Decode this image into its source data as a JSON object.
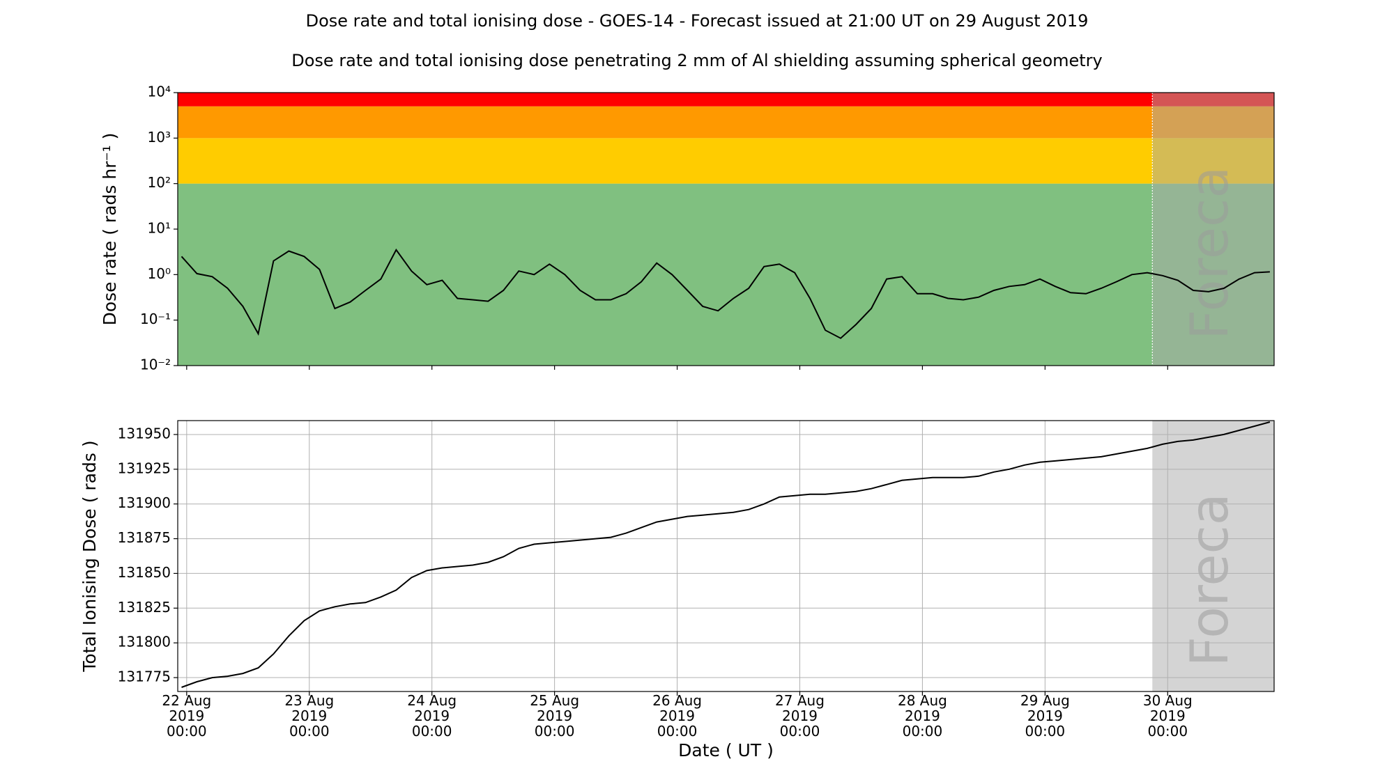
{
  "chart_data": [
    {
      "type": "line",
      "title": "Dose rate and total ionising dose - GOES-14 - Forecast issued at 21:00 UT on 29 August 2019",
      "subtitle": "Dose rate and total ionising dose penetrating 2 mm of Al shielding assuming spherical geometry",
      "ylabel": "Dose rate ( rads hr⁻¹ )",
      "annotation": "Forecast",
      "log_y": true,
      "grid": false,
      "color": "#000000",
      "bands": [
        {
          "from": 0.01,
          "to": 100,
          "color": "#80c080"
        },
        {
          "from": 100,
          "to": 1000,
          "color": "#ffcc00"
        },
        {
          "from": 1000,
          "to": 5000,
          "color": "#ff9900"
        },
        {
          "from": 5000,
          "to": 10000,
          "color": "#ff0000"
        }
      ],
      "forecast_start": "2019-08-29T21:00",
      "forecast_color": "#a9a9a9",
      "xlim": [
        "2019-08-21T22:15",
        "2019-08-30T20:50"
      ],
      "xticks": [
        "2019-08-22T00:00",
        "2019-08-23T00:00",
        "2019-08-24T00:00",
        "2019-08-25T00:00",
        "2019-08-26T00:00",
        "2019-08-27T00:00",
        "2019-08-28T00:00",
        "2019-08-29T00:00",
        "2019-08-30T00:00"
      ],
      "ylim": [
        0.01,
        10000
      ],
      "yticks": [
        {
          "value": 0.01,
          "label": "10⁻²"
        },
        {
          "value": 0.1,
          "label": "10⁻¹"
        },
        {
          "value": 1,
          "label": "10⁰"
        },
        {
          "value": 10,
          "label": "10¹"
        },
        {
          "value": 100,
          "label": "10²"
        },
        {
          "value": 1000,
          "label": "10³"
        },
        {
          "value": 10000,
          "label": "10⁴"
        }
      ],
      "x": [
        "2019-08-21T23:00",
        "2019-08-22T02:00",
        "2019-08-22T05:00",
        "2019-08-22T08:00",
        "2019-08-22T11:00",
        "2019-08-22T14:00",
        "2019-08-22T17:00",
        "2019-08-22T20:00",
        "2019-08-22T23:00",
        "2019-08-23T02:00",
        "2019-08-23T05:00",
        "2019-08-23T08:00",
        "2019-08-23T11:00",
        "2019-08-23T14:00",
        "2019-08-23T17:00",
        "2019-08-23T20:00",
        "2019-08-23T23:00",
        "2019-08-24T02:00",
        "2019-08-24T05:00",
        "2019-08-24T08:00",
        "2019-08-24T11:00",
        "2019-08-24T14:00",
        "2019-08-24T17:00",
        "2019-08-24T20:00",
        "2019-08-24T23:00",
        "2019-08-25T02:00",
        "2019-08-25T05:00",
        "2019-08-25T08:00",
        "2019-08-25T11:00",
        "2019-08-25T14:00",
        "2019-08-25T17:00",
        "2019-08-25T20:00",
        "2019-08-25T23:00",
        "2019-08-26T02:00",
        "2019-08-26T05:00",
        "2019-08-26T08:00",
        "2019-08-26T11:00",
        "2019-08-26T14:00",
        "2019-08-26T17:00",
        "2019-08-26T20:00",
        "2019-08-26T23:00",
        "2019-08-27T02:00",
        "2019-08-27T05:00",
        "2019-08-27T08:00",
        "2019-08-27T11:00",
        "2019-08-27T14:00",
        "2019-08-27T17:00",
        "2019-08-27T20:00",
        "2019-08-27T23:00",
        "2019-08-28T02:00",
        "2019-08-28T05:00",
        "2019-08-28T08:00",
        "2019-08-28T11:00",
        "2019-08-28T14:00",
        "2019-08-28T17:00",
        "2019-08-28T20:00",
        "2019-08-28T23:00",
        "2019-08-29T02:00",
        "2019-08-29T05:00",
        "2019-08-29T08:00",
        "2019-08-29T11:00",
        "2019-08-29T14:00",
        "2019-08-29T17:00",
        "2019-08-29T20:00",
        "2019-08-29T23:00",
        "2019-08-30T02:00",
        "2019-08-30T05:00",
        "2019-08-30T08:00",
        "2019-08-30T11:00",
        "2019-08-30T14:00",
        "2019-08-30T17:00",
        "2019-08-30T20:00"
      ],
      "values": [
        2.5,
        1.05,
        0.9,
        0.5,
        0.2,
        0.05,
        2.0,
        3.3,
        2.5,
        1.3,
        0.18,
        0.25,
        0.45,
        0.8,
        3.5,
        1.2,
        0.6,
        0.75,
        0.3,
        0.28,
        0.26,
        0.45,
        1.2,
        1.0,
        1.7,
        1.0,
        0.45,
        0.28,
        0.28,
        0.38,
        0.7,
        1.8,
        1.0,
        0.45,
        0.2,
        0.16,
        0.3,
        0.5,
        1.5,
        1.7,
        1.1,
        0.3,
        0.06,
        0.04,
        0.08,
        0.18,
        0.8,
        0.9,
        0.38,
        0.38,
        0.3,
        0.28,
        0.32,
        0.45,
        0.55,
        0.6,
        0.8,
        0.55,
        0.4,
        0.38,
        0.5,
        0.7,
        1.0,
        1.1,
        0.95,
        0.75,
        0.45,
        0.42,
        0.5,
        0.8,
        1.1,
        1.15
      ]
    },
    {
      "type": "line",
      "ylabel": "Total Ionising Dose ( rads )",
      "xlabel": "Date ( UT )",
      "annotation": "Forecast",
      "log_y": false,
      "grid": true,
      "color": "#000000",
      "forecast_start": "2019-08-29T21:00",
      "forecast_color": "#a9a9a9",
      "xlim": [
        "2019-08-21T22:15",
        "2019-08-30T20:50"
      ],
      "xticks": [
        {
          "value": "2019-08-22T00:00",
          "label": "22 Aug\n2019\n00:00"
        },
        {
          "value": "2019-08-23T00:00",
          "label": "23 Aug\n2019\n00:00"
        },
        {
          "value": "2019-08-24T00:00",
          "label": "24 Aug\n2019\n00:00"
        },
        {
          "value": "2019-08-25T00:00",
          "label": "25 Aug\n2019\n00:00"
        },
        {
          "value": "2019-08-26T00:00",
          "label": "26 Aug\n2019\n00:00"
        },
        {
          "value": "2019-08-27T00:00",
          "label": "27 Aug\n2019\n00:00"
        },
        {
          "value": "2019-08-28T00:00",
          "label": "28 Aug\n2019\n00:00"
        },
        {
          "value": "2019-08-29T00:00",
          "label": "29 Aug\n2019\n00:00"
        },
        {
          "value": "2019-08-30T00:00",
          "label": "30 Aug\n2019\n00:00"
        }
      ],
      "ylim": [
        131765,
        131960
      ],
      "yticks": [
        131775,
        131800,
        131825,
        131850,
        131875,
        131900,
        131925,
        131950
      ],
      "x": [
        "2019-08-21T23:00",
        "2019-08-22T02:00",
        "2019-08-22T05:00",
        "2019-08-22T08:00",
        "2019-08-22T11:00",
        "2019-08-22T14:00",
        "2019-08-22T17:00",
        "2019-08-22T20:00",
        "2019-08-22T23:00",
        "2019-08-23T02:00",
        "2019-08-23T05:00",
        "2019-08-23T08:00",
        "2019-08-23T11:00",
        "2019-08-23T14:00",
        "2019-08-23T17:00",
        "2019-08-23T20:00",
        "2019-08-23T23:00",
        "2019-08-24T02:00",
        "2019-08-24T05:00",
        "2019-08-24T08:00",
        "2019-08-24T11:00",
        "2019-08-24T14:00",
        "2019-08-24T17:00",
        "2019-08-24T20:00",
        "2019-08-24T23:00",
        "2019-08-25T02:00",
        "2019-08-25T05:00",
        "2019-08-25T08:00",
        "2019-08-25T11:00",
        "2019-08-25T14:00",
        "2019-08-25T17:00",
        "2019-08-25T20:00",
        "2019-08-25T23:00",
        "2019-08-26T02:00",
        "2019-08-26T05:00",
        "2019-08-26T08:00",
        "2019-08-26T11:00",
        "2019-08-26T14:00",
        "2019-08-26T17:00",
        "2019-08-26T20:00",
        "2019-08-26T23:00",
        "2019-08-27T02:00",
        "2019-08-27T05:00",
        "2019-08-27T08:00",
        "2019-08-27T11:00",
        "2019-08-27T14:00",
        "2019-08-27T17:00",
        "2019-08-27T20:00",
        "2019-08-27T23:00",
        "2019-08-28T02:00",
        "2019-08-28T05:00",
        "2019-08-28T08:00",
        "2019-08-28T11:00",
        "2019-08-28T14:00",
        "2019-08-28T17:00",
        "2019-08-28T20:00",
        "2019-08-28T23:00",
        "2019-08-29T02:00",
        "2019-08-29T05:00",
        "2019-08-29T08:00",
        "2019-08-29T11:00",
        "2019-08-29T14:00",
        "2019-08-29T17:00",
        "2019-08-29T20:00",
        "2019-08-29T23:00",
        "2019-08-30T02:00",
        "2019-08-30T05:00",
        "2019-08-30T08:00",
        "2019-08-30T11:00",
        "2019-08-30T14:00",
        "2019-08-30T17:00",
        "2019-08-30T20:00"
      ],
      "values": [
        131768,
        131772,
        131775,
        131776,
        131778,
        131782,
        131792,
        131805,
        131816,
        131823,
        131826,
        131828,
        131829,
        131833,
        131838,
        131847,
        131852,
        131854,
        131855,
        131856,
        131858,
        131862,
        131868,
        131871,
        131872,
        131873,
        131874,
        131875,
        131876,
        131879,
        131883,
        131887,
        131889,
        131891,
        131892,
        131893,
        131894,
        131896,
        131900,
        131905,
        131906,
        131907,
        131907,
        131908,
        131909,
        131911,
        131914,
        131917,
        131918,
        131919,
        131919,
        131919,
        131920,
        131923,
        131925,
        131928,
        131930,
        131931,
        131932,
        131933,
        131934,
        131936,
        131938,
        131940,
        131943,
        131945,
        131946,
        131948,
        131950,
        131953,
        131956,
        131959
      ]
    }
  ]
}
